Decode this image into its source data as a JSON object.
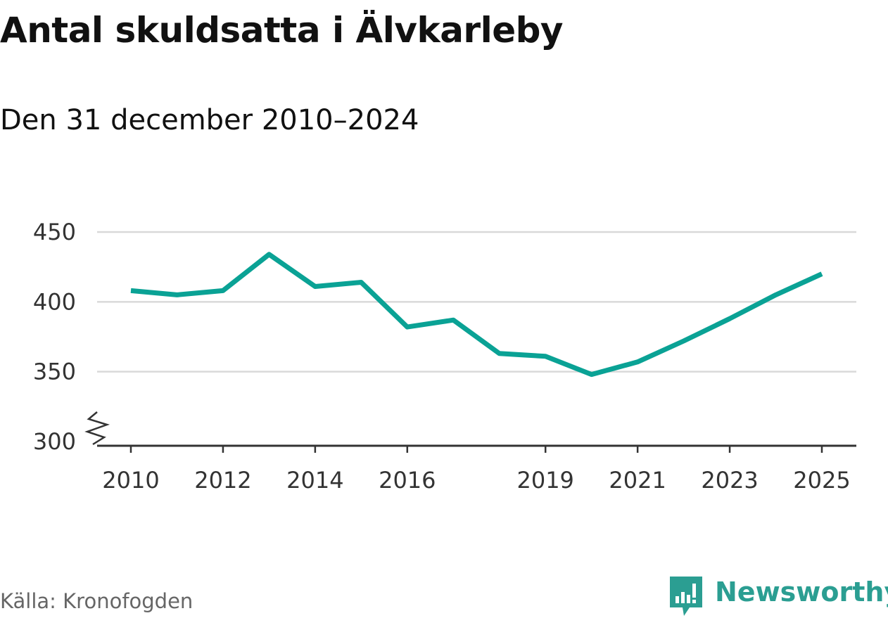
{
  "title": "Antal skuldsatta i Älvkarleby",
  "subtitle": "Den 31 december 2010–2024",
  "source": "Källa: Kronofogden",
  "brand": {
    "name": "Newsworthy",
    "icon": "newsworthy-logo-icon",
    "color": "#2b9e92"
  },
  "colors": {
    "line": "#0aa295",
    "grid": "#d9d9d9",
    "axis": "#333333"
  },
  "chart_data": {
    "type": "line",
    "title": "Antal skuldsatta i Älvkarleby",
    "subtitle": "Den 31 december 2010–2024",
    "ylim": [
      300,
      450
    ],
    "yticks": [
      300,
      350,
      400,
      450
    ],
    "xlim": [
      2010,
      2025
    ],
    "xticks": [
      2010,
      2012,
      2014,
      2016,
      2019,
      2021,
      2023,
      2025
    ],
    "axis_break": true,
    "grid": true,
    "series": [
      {
        "x": [
          2010,
          2011,
          2012,
          2013,
          2014,
          2015,
          2016,
          2017,
          2018,
          2019,
          2020,
          2021,
          2022,
          2023,
          2024,
          2025
        ],
        "values": [
          408,
          405,
          408,
          434,
          411,
          414,
          382,
          387,
          363,
          361,
          348,
          357,
          372,
          388,
          405,
          420
        ]
      }
    ]
  }
}
